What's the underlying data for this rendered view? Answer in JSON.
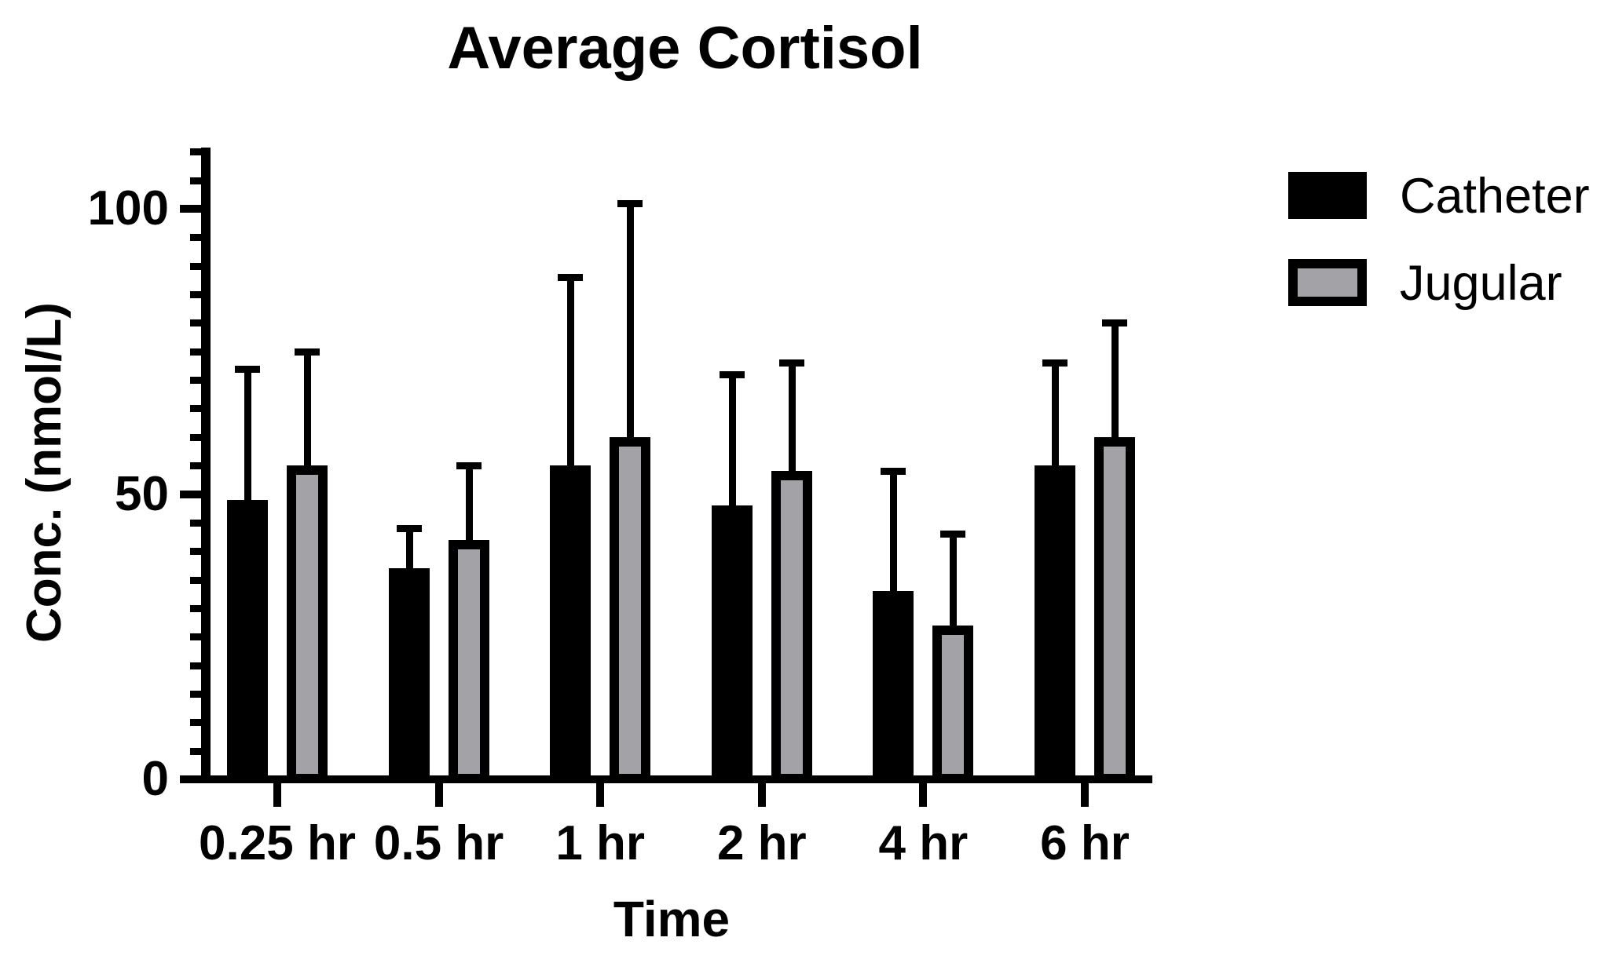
{
  "title": "Average Cortisol",
  "colors": {
    "catheter_fill": "#000000",
    "jugular_fill": "#a3a3a7",
    "bar_outline": "#000000",
    "axis": "#000000",
    "background": "#ffffff"
  },
  "legend": {
    "position": "right",
    "items": [
      {
        "label": "Catheter",
        "swatch": "solid-black-rect"
      },
      {
        "label": "Jugular",
        "swatch": "gray-rect-black-border"
      }
    ]
  },
  "chart_data": {
    "type": "bar",
    "title": "Average Cortisol",
    "xlabel": "Time",
    "ylabel": "Conc. (nmol/L)",
    "categories": [
      "0.25 hr",
      "0.5 hr",
      "1 hr",
      "2 hr",
      "4 hr",
      "6 hr"
    ],
    "series": [
      {
        "name": "Catheter",
        "color": "#000000",
        "values": [
          49,
          37,
          55,
          48,
          33,
          55
        ],
        "error_upper_sd": [
          23,
          7,
          33,
          23,
          21,
          18
        ],
        "error_tops": [
          72,
          44,
          88,
          71,
          54,
          73
        ]
      },
      {
        "name": "Jugular",
        "color": "#a3a3a7",
        "values": [
          55,
          42,
          60,
          54,
          27,
          60
        ],
        "error_upper_sd": [
          20,
          13,
          41,
          19,
          16,
          20
        ],
        "error_tops": [
          75,
          55,
          101,
          73,
          43,
          80
        ]
      }
    ],
    "error_bars": "upper-only-with-caps",
    "ylim": [
      0,
      110
    ],
    "y_major_ticks": [
      0,
      50,
      100
    ],
    "y_major_tick_labels": [
      "0",
      "50",
      "100"
    ],
    "y_minor_tick_step": 5,
    "grid": false,
    "legend_position": "right"
  }
}
